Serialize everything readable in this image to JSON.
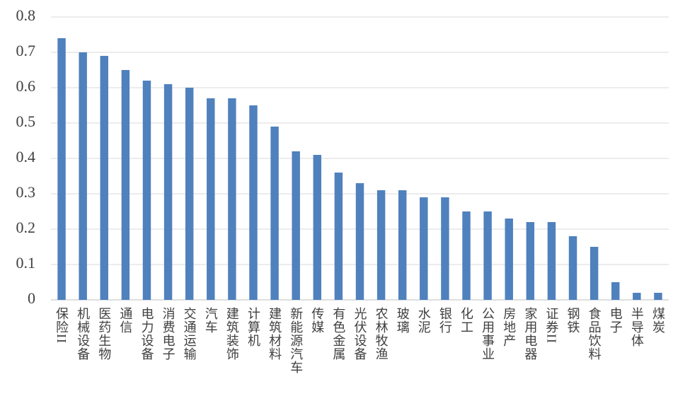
{
  "chart_data": {
    "type": "bar",
    "categories": [
      "保险II",
      "机械设备",
      "医药生物",
      "通信",
      "电力设备",
      "消费电子",
      "交通运输",
      "汽车",
      "建筑装饰",
      "计算机",
      "建筑材料",
      "新能源汽车",
      "传媒",
      "有色金属",
      "光伏设备",
      "农林牧渔",
      "玻璃",
      "水泥",
      "银行",
      "化工",
      "公用事业",
      "房地产",
      "家用电器",
      "证券II",
      "钢铁",
      "食品饮料",
      "电子",
      "半导体",
      "煤炭"
    ],
    "values": [
      0.74,
      0.7,
      0.69,
      0.65,
      0.62,
      0.61,
      0.6,
      0.57,
      0.57,
      0.55,
      0.49,
      0.42,
      0.41,
      0.36,
      0.33,
      0.31,
      0.31,
      0.29,
      0.29,
      0.25,
      0.25,
      0.23,
      0.22,
      0.22,
      0.18,
      0.15,
      0.05,
      0.02,
      0.02
    ],
    "color": "#4f81bd",
    "ylim": [
      0,
      0.8
    ],
    "yticks": [
      0,
      0.1,
      0.2,
      0.3,
      0.4,
      0.5,
      0.6,
      0.7,
      0.8
    ],
    "grid": true
  }
}
